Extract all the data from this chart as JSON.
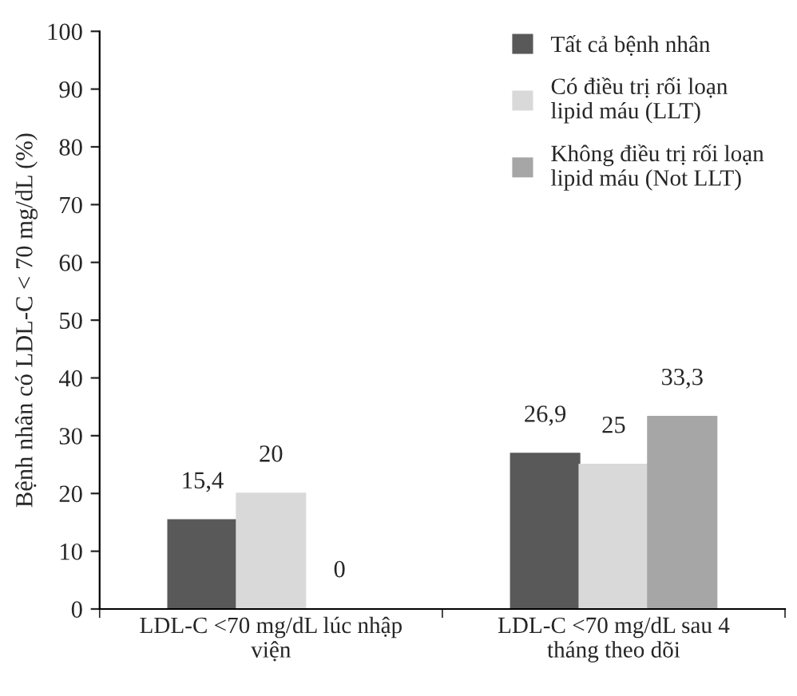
{
  "chart_data": {
    "type": "bar",
    "ylabel": "Bệnh nhân có LDL-C < 70 mg/dL (%)",
    "categories": [
      "LDL-C <70 mg/dL lúc nhập\nviện",
      "LDL-C <70 mg/dL sau 4\ntháng theo dõi"
    ],
    "series": [
      {
        "name": "Tất cả bệnh nhân",
        "color": "#595959",
        "values": [
          15.4,
          26.9
        ],
        "value_labels": [
          "15,4",
          "26,9"
        ]
      },
      {
        "name": "Có điều trị rối loạn\nlipid máu (LLT)",
        "color": "#d9d9d9",
        "values": [
          20,
          25
        ],
        "value_labels": [
          "20",
          "25"
        ]
      },
      {
        "name": "Không điều trị rối loạn\nlipid máu (Not LLT)",
        "color": "#a6a6a6",
        "values": [
          0,
          33.3
        ],
        "value_labels": [
          "0",
          "33,3"
        ]
      }
    ],
    "ylim": [
      0,
      100
    ],
    "yticks": [
      0,
      10,
      20,
      30,
      40,
      50,
      60,
      70,
      80,
      90,
      100
    ],
    "grid": false,
    "legend": "top right"
  }
}
